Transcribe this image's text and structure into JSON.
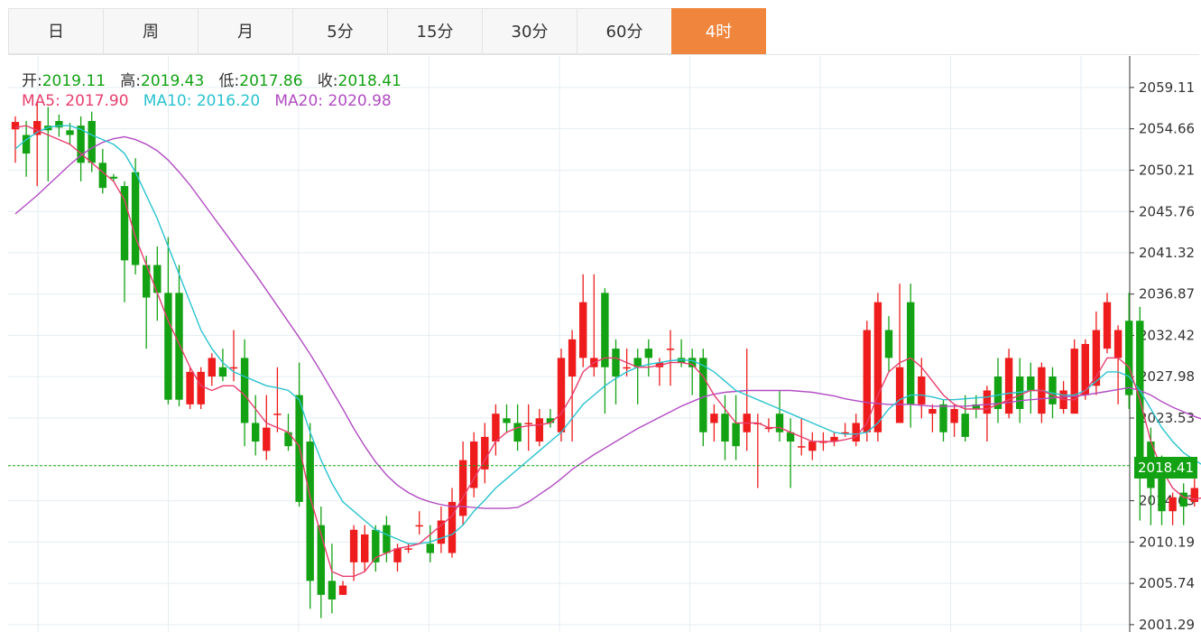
{
  "tabs": [
    {
      "label": "日",
      "active": false
    },
    {
      "label": "周",
      "active": false
    },
    {
      "label": "月",
      "active": false
    },
    {
      "label": "5分",
      "active": false
    },
    {
      "label": "15分",
      "active": false
    },
    {
      "label": "30分",
      "active": false
    },
    {
      "label": "60分",
      "active": false
    },
    {
      "label": "4时",
      "active": true
    }
  ],
  "ohlc": {
    "open_label": "开:",
    "open": "2019.11",
    "high_label": "高:",
    "high": "2019.43",
    "low_label": "低:",
    "low": "2017.86",
    "close_label": "收:",
    "close": "2018.41"
  },
  "ma": {
    "ma5_label": "MA5:",
    "ma5": "2017.90",
    "ma10_label": "MA10:",
    "ma10": "2016.20",
    "ma20_label": "MA20:",
    "ma20": "2020.98"
  },
  "colors": {
    "up": "#ee1c1c",
    "down": "#13a213",
    "ma5": "#e83e6d",
    "ma10": "#29c3cf",
    "ma20": "#b24cc3",
    "active_tab": "#f0863e",
    "grid": "#e6edf1"
  },
  "chart_data": {
    "type": "candlestick",
    "ylim": [
      2000.5,
      2062.5
    ],
    "yticks": [
      "2059.11",
      "2054.66",
      "2050.21",
      "2045.76",
      "2041.32",
      "2036.87",
      "2032.42",
      "2027.98",
      "2023.53",
      "2014.63",
      "2010.19",
      "2005.74",
      "2001.29"
    ],
    "last_price": "2018.41",
    "candles": [
      [
        2054.6,
        2055.4,
        2056.0,
        2051.0
      ],
      [
        2054.0,
        2052.0,
        2055.5,
        2049.5
      ],
      [
        2054.0,
        2055.5,
        2057.5,
        2048.5
      ],
      [
        2055.0,
        2054.5,
        2057.0,
        2049.0
      ],
      [
        2055.5,
        2054.8,
        2056.2,
        2053.8
      ],
      [
        2054.5,
        2054.0,
        2055.3,
        2053.0
      ],
      [
        2055.0,
        2051.0,
        2056.0,
        2049.0
      ],
      [
        2055.5,
        2051.0,
        2056.5,
        2050.0
      ],
      [
        2051.0,
        2048.3,
        2052.5,
        2047.7
      ],
      [
        2049.5,
        2049.3,
        2049.8,
        2049.0
      ],
      [
        2048.5,
        2040.5,
        2049.0,
        2036.0
      ],
      [
        2050.0,
        2040.0,
        2051.5,
        2039.0
      ],
      [
        2040.0,
        2036.5,
        2041.0,
        2031.0
      ],
      [
        2040.0,
        2037.0,
        2042.0,
        2034.0
      ],
      [
        2037.0,
        2025.5,
        2043.0,
        2025.0
      ],
      [
        2037.0,
        2025.5,
        2040.0,
        2024.8
      ],
      [
        2025.0,
        2028.5,
        2029.0,
        2024.5
      ],
      [
        2025.0,
        2028.5,
        2029.0,
        2024.5
      ],
      [
        2028.0,
        2030.0,
        2030.5,
        2027.0
      ],
      [
        2029.0,
        2028.0,
        2031.0,
        2027.5
      ],
      [
        2029.0,
        2029.0,
        2033.0,
        2027.5
      ],
      [
        2030.0,
        2023.0,
        2032.0,
        2020.5
      ],
      [
        2023.0,
        2021.0,
        2026.0,
        2019.5
      ],
      [
        2020.0,
        2022.5,
        2026.0,
        2019.0
      ],
      [
        2024.0,
        2024.0,
        2029.0,
        2022.0
      ],
      [
        2022.0,
        2020.5,
        2024.0,
        2020.0
      ],
      [
        2026.0,
        2014.5,
        2029.5,
        2014.0
      ],
      [
        2021.0,
        2006.0,
        2023.0,
        2003.0
      ],
      [
        2012.0,
        2004.5,
        2014.0,
        2002.0
      ],
      [
        2006.0,
        2004.0,
        2010.0,
        2002.5
      ],
      [
        2004.5,
        2005.5,
        2006.0,
        2004.5
      ],
      [
        2008.0,
        2011.5,
        2012.0,
        2006.0
      ],
      [
        2008.0,
        2011.0,
        2012.0,
        2007.0
      ],
      [
        2011.5,
        2008.0,
        2012.0,
        2007.0
      ],
      [
        2012.0,
        2009.0,
        2013.0,
        2008.0
      ],
      [
        2008.0,
        2009.5,
        2010.0,
        2007.0
      ],
      [
        2009.5,
        2009.5,
        2010.0,
        2009.0
      ],
      [
        2012.0,
        2012.0,
        2013.5,
        2011.0
      ],
      [
        2010.0,
        2009.0,
        2012.0,
        2008.0
      ],
      [
        2010.0,
        2012.5,
        2014.0,
        2009.0
      ],
      [
        2009.0,
        2014.5,
        2016.0,
        2008.5
      ],
      [
        2013.0,
        2019.0,
        2021.0,
        2012.0
      ],
      [
        2016.0,
        2021.0,
        2022.0,
        2015.0
      ],
      [
        2018.0,
        2021.5,
        2023.0,
        2016.5
      ],
      [
        2021.0,
        2024.0,
        2025.0,
        2019.5
      ],
      [
        2023.5,
        2023.0,
        2025.0,
        2022.0
      ],
      [
        2023.0,
        2021.0,
        2025.0,
        2020.0
      ],
      [
        2023.0,
        2023.0,
        2025.0,
        2020.0
      ],
      [
        2021.0,
        2023.5,
        2024.5,
        2020.5
      ],
      [
        2023.5,
        2023.0,
        2024.5,
        2022.5
      ],
      [
        2022.0,
        2030.0,
        2031.0,
        2021.0
      ],
      [
        2028.0,
        2032.0,
        2033.0,
        2021.0
      ],
      [
        2030.0,
        2036.0,
        2039.0,
        2029.0
      ],
      [
        2029.0,
        2030.0,
        2039.0,
        2028.0
      ],
      [
        2037.0,
        2029.0,
        2037.5,
        2024.0
      ],
      [
        2031.0,
        2028.0,
        2032.0,
        2025.0
      ],
      [
        2029.0,
        2029.0,
        2031.0,
        2028.0
      ],
      [
        2030.0,
        2029.0,
        2031.0,
        2025.0
      ],
      [
        2031.0,
        2030.0,
        2032.0,
        2028.0
      ],
      [
        2029.0,
        2029.5,
        2030.0,
        2027.0
      ],
      [
        2031.0,
        2031.0,
        2033.0,
        2027.0
      ],
      [
        2030.0,
        2029.5,
        2032.0,
        2029.0
      ],
      [
        2030.0,
        2029.0,
        2031.0,
        2026.0
      ],
      [
        2030.0,
        2022.0,
        2031.0,
        2020.5
      ],
      [
        2023.0,
        2024.0,
        2025.0,
        2021.0
      ],
      [
        2024.0,
        2021.0,
        2026.0,
        2019.0
      ],
      [
        2023.0,
        2020.5,
        2026.0,
        2019.0
      ],
      [
        2022.0,
        2024.0,
        2031.0,
        2020.0
      ],
      [
        2023.0,
        2023.0,
        2024.0,
        2016.0
      ],
      [
        2022.5,
        2022.5,
        2023.5,
        2022.0
      ],
      [
        2024.0,
        2022.0,
        2026.5,
        2021.0
      ],
      [
        2022.0,
        2021.0,
        2023.5,
        2016.0
      ],
      [
        2020.5,
        2020.5,
        2023.5,
        2019.5
      ],
      [
        2020.0,
        2021.0,
        2022.0,
        2019.0
      ],
      [
        2021.0,
        2021.0,
        2022.0,
        2020.0
      ],
      [
        2021.0,
        2021.5,
        2022.0,
        2020.5
      ],
      [
        2022.0,
        2022.0,
        2023.0,
        2021.5
      ],
      [
        2021.0,
        2023.0,
        2024.0,
        2020.5
      ],
      [
        2022.0,
        2033.0,
        2034.0,
        2021.0
      ],
      [
        2022.0,
        2036.0,
        2037.0,
        2021.0
      ],
      [
        2033.0,
        2030.0,
        2034.5,
        2028.5
      ],
      [
        2023.0,
        2029.0,
        2038.0,
        2023.0
      ],
      [
        2036.0,
        2025.0,
        2038.0,
        2022.5
      ],
      [
        2025.0,
        2028.0,
        2030.0,
        2023.5
      ],
      [
        2024.0,
        2024.5,
        2025.0,
        2022.0
      ],
      [
        2025.0,
        2022.0,
        2025.5,
        2021.0
      ],
      [
        2023.0,
        2024.5,
        2025.0,
        2021.5
      ],
      [
        2024.0,
        2021.5,
        2026.0,
        2021.0
      ],
      [
        2025.0,
        2024.5,
        2026.0,
        2023.5
      ],
      [
        2024.0,
        2026.5,
        2027.0,
        2021.0
      ],
      [
        2028.0,
        2024.5,
        2030.0,
        2023.0
      ],
      [
        2024.0,
        2030.0,
        2031.0,
        2023.5
      ],
      [
        2028.0,
        2024.5,
        2030.0,
        2023.0
      ],
      [
        2028.0,
        2026.5,
        2029.5,
        2024.0
      ],
      [
        2024.0,
        2029.0,
        2029.5,
        2023.0
      ],
      [
        2028.0,
        2025.0,
        2029.0,
        2023.5
      ],
      [
        2024.5,
        2026.5,
        2027.5,
        2024.0
      ],
      [
        2024.0,
        2031.0,
        2032.0,
        2024.0
      ],
      [
        2026.0,
        2031.5,
        2032.0,
        2025.5
      ],
      [
        2027.0,
        2033.0,
        2035.0,
        2026.0
      ],
      [
        2031.0,
        2036.0,
        2037.0,
        2030.5
      ],
      [
        2030.0,
        2033.0,
        2033.5,
        2025.0
      ],
      [
        2034.0,
        2026.0,
        2037.0,
        2024.5
      ],
      [
        2034.0,
        2019.0,
        2035.5,
        2012.5
      ],
      [
        2021.0,
        2016.0,
        2022.5,
        2012.0
      ],
      [
        2019.0,
        2013.5,
        2019.5,
        2012.0
      ],
      [
        2013.5,
        2015.0,
        2015.5,
        2012.0
      ],
      [
        2015.5,
        2014.0,
        2016.5,
        2012.0
      ],
      [
        2014.5,
        2016.0,
        2017.0,
        2014.0
      ],
      [
        2016.5,
        2015.0,
        2017.5,
        2014.5
      ],
      [
        2015.0,
        2016.0,
        2017.0,
        2013.5
      ],
      [
        2015.0,
        2017.0,
        2018.0,
        2014.5
      ],
      [
        2015.0,
        2018.0,
        2018.5,
        2013.0
      ],
      [
        2016.0,
        2019.0,
        2019.5,
        2013.0
      ],
      [
        2017.5,
        2019.0,
        2019.5,
        2016.5
      ],
      [
        2019.11,
        2018.41,
        2019.43,
        2017.86
      ]
    ],
    "ma5": [
      2054.8,
      2055.0,
      2054.5,
      2054.0,
      2053.5,
      2053.0,
      2052.0,
      2051.0,
      2050.0,
      2049.0,
      2047.0,
      2043.0,
      2040.0,
      2037.0,
      2034.0,
      2031.5,
      2029.0,
      2027.0,
      2026.5,
      2027.0,
      2027.0,
      2026.0,
      2024.5,
      2023.0,
      2022.5,
      2022.0,
      2020.5,
      2015.0,
      2011.0,
      2007.0,
      2006.5,
      2006.5,
      2007.0,
      2008.5,
      2009.0,
      2009.5,
      2009.7,
      2010.0,
      2011.0,
      2012.0,
      2013.0,
      2015.0,
      2017.0,
      2019.0,
      2021.0,
      2022.0,
      2022.5,
      2022.7,
      2022.8,
      2023.0,
      2024.0,
      2026.0,
      2028.5,
      2029.5,
      2030.0,
      2030.0,
      2029.5,
      2029.0,
      2029.0,
      2029.2,
      2029.5,
      2029.5,
      2029.3,
      2028.0,
      2026.0,
      2024.5,
      2023.0,
      2023.0,
      2023.0,
      2022.5,
      2022.5,
      2022.0,
      2021.5,
      2021.0,
      2021.0,
      2021.0,
      2021.2,
      2021.5,
      2023.0,
      2026.0,
      2028.5,
      2029.5,
      2030.0,
      2029.0,
      2027.5,
      2026.0,
      2025.0,
      2024.5,
      2024.5,
      2024.5,
      2025.0,
      2025.5,
      2026.0,
      2026.5,
      2026.5,
      2026.0,
      2025.5,
      2025.5,
      2026.5,
      2028.0,
      2030.0,
      2030.0,
      2029.0,
      2025.5,
      2021.0,
      2018.0,
      2016.0,
      2015.0,
      2014.8,
      2015.0,
      2015.5,
      2016.0,
      2016.5,
      2017.0,
      2017.5,
      2017.9
    ],
    "ma10": [
      2052.5,
      2053.5,
      2054.3,
      2054.8,
      2055.0,
      2055.0,
      2054.6,
      2054.0,
      2053.5,
      2053.0,
      2052.0,
      2050.0,
      2047.5,
      2045.0,
      2042.0,
      2039.0,
      2036.0,
      2033.0,
      2031.0,
      2029.5,
      2028.5,
      2028.0,
      2027.5,
      2027.0,
      2026.8,
      2026.5,
      2025.5,
      2022.0,
      2019.0,
      2016.5,
      2014.5,
      2013.5,
      2012.5,
      2011.5,
      2011.0,
      2010.5,
      2010.0,
      2010.0,
      2010.2,
      2010.6,
      2011.0,
      2012.0,
      2013.5,
      2014.7,
      2016.0,
      2017.0,
      2018.0,
      2019.0,
      2020.0,
      2021.0,
      2022.0,
      2023.5,
      2025.0,
      2026.0,
      2027.0,
      2027.8,
      2028.5,
      2029.0,
      2029.3,
      2029.5,
      2029.7,
      2029.8,
      2029.7,
      2029.2,
      2028.5,
      2027.5,
      2026.5,
      2026.0,
      2025.5,
      2025.0,
      2024.5,
      2024.0,
      2023.5,
      2023.0,
      2022.5,
      2022.0,
      2021.8,
      2021.8,
      2022.0,
      2023.0,
      2024.5,
      2025.5,
      2026.0,
      2026.0,
      2025.8,
      2025.5,
      2025.5,
      2025.6,
      2025.7,
      2025.8,
      2026.0,
      2026.2,
      2026.3,
      2026.5,
      2026.5,
      2026.2,
      2026.0,
      2026.0,
      2026.5,
      2027.5,
      2028.5,
      2028.5,
      2028.0,
      2026.5,
      2024.5,
      2022.5,
      2021.0,
      2019.8,
      2019.0,
      2018.3,
      2017.5,
      2016.8,
      2016.3,
      2016.1,
      2016.1,
      2016.2
    ],
    "ma20": [
      2045.5,
      2046.5,
      2047.5,
      2048.6,
      2049.7,
      2050.8,
      2051.8,
      2052.6,
      2053.2,
      2053.6,
      2053.8,
      2053.5,
      2053.0,
      2052.3,
      2051.3,
      2050.0,
      2048.6,
      2047.0,
      2045.4,
      2043.8,
      2042.2,
      2040.6,
      2039.0,
      2037.3,
      2035.6,
      2033.9,
      2032.2,
      2030.4,
      2028.5,
      2026.5,
      2024.5,
      2022.4,
      2020.5,
      2018.8,
      2017.4,
      2016.3,
      2015.5,
      2014.9,
      2014.5,
      2014.2,
      2014.0,
      2014.0,
      2013.9,
      2013.8,
      2013.8,
      2013.8,
      2013.9,
      2014.5,
      2015.3,
      2016.1,
      2017.0,
      2018.0,
      2018.8,
      2019.6,
      2020.3,
      2021.0,
      2021.7,
      2022.4,
      2023.0,
      2023.6,
      2024.2,
      2024.8,
      2025.3,
      2025.8,
      2026.1,
      2026.3,
      2026.4,
      2026.5,
      2026.5,
      2026.5,
      2026.5,
      2026.5,
      2026.4,
      2026.3,
      2026.1,
      2025.9,
      2025.6,
      2025.4,
      2025.2,
      2025.1,
      2025.0,
      2025.0,
      2025.0,
      2024.9,
      2024.8,
      2024.8,
      2024.8,
      2024.8,
      2024.9,
      2025.0,
      2025.1,
      2025.2,
      2025.4,
      2025.5,
      2025.6,
      2025.7,
      2025.8,
      2025.9,
      2026.0,
      2026.2,
      2026.4,
      2026.6,
      2026.8,
      2026.5,
      2026.0,
      2025.3,
      2024.7,
      2024.2,
      2023.7,
      2023.3,
      2023.0,
      2022.7,
      2022.4,
      2022.0,
      2021.5,
      2021.0
    ]
  }
}
